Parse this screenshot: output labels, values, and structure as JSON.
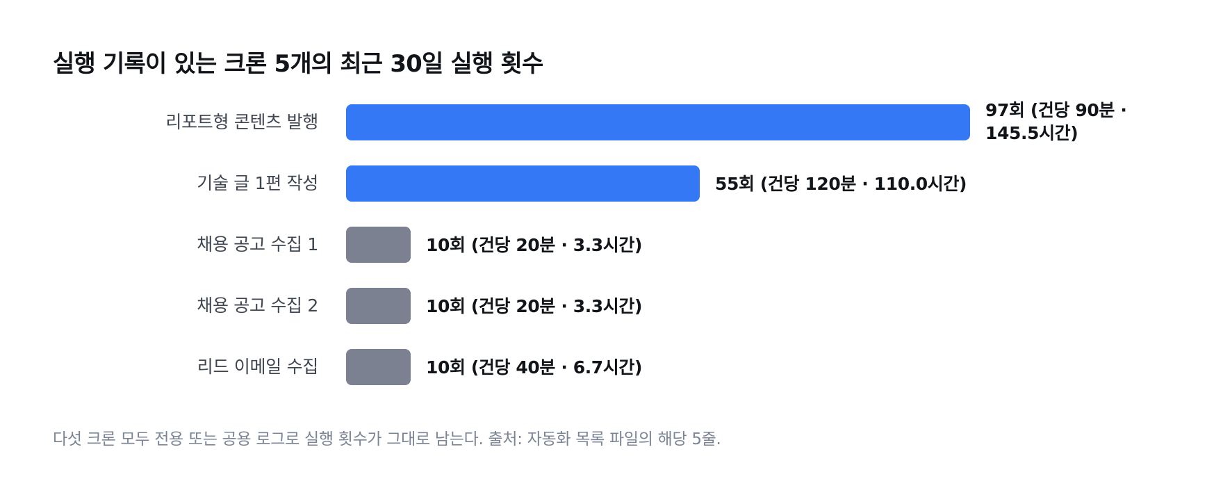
{
  "chart_data": {
    "type": "bar",
    "orientation": "horizontal",
    "title": "실행 기록이 있는 크론 5개의 최근 30일 실행 횟수",
    "xlabel": "",
    "ylabel": "",
    "xlim": [
      0,
      97
    ],
    "grid": false,
    "legend": "none",
    "categories": [
      "리포트형 콘텐츠 발행",
      "기술 글 1편 작성",
      "채용 공고 수집 1",
      "채용 공고 수집 2",
      "리드 이메일 수집"
    ],
    "values": [
      97,
      55,
      10,
      10,
      10
    ],
    "data_labels": [
      "97회 (건당 90분 · 145.5시간)",
      "55회 (건당 120분 · 110.0시간)",
      "10회 (건당 20분 · 3.3시간)",
      "10회 (건당 20분 · 3.3시간)",
      "10회 (건당 40분 · 6.7시간)"
    ],
    "bar_colors": [
      "#3478f6",
      "#3478f6",
      "#7b8191",
      "#7b8191",
      "#7b8191"
    ],
    "caption": "다섯 크론 모두 전용 또는 공용 로그로 실행 횟수가 그대로 남는다. 출처: 자동화 목록 파일의 해당 5줄."
  }
}
